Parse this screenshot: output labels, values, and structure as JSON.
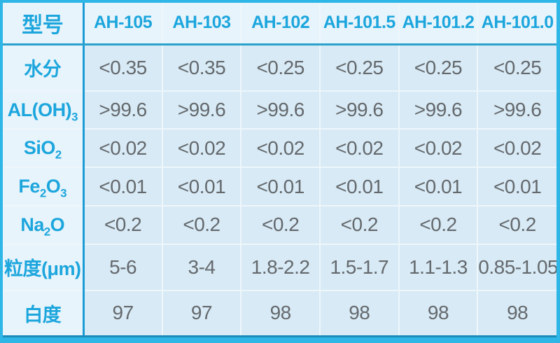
{
  "colors": {
    "frame_cyan": "#2eb6e6",
    "accent_text": "#1ca6dd",
    "value_text": "#64696d",
    "data_cell_bg": "#d8eaf5",
    "label_cell_bg": "#e8f4fb",
    "strong_divider": "#1a9cd6",
    "header_divider": "#2aa2cc",
    "light_grid": "#edf6fb",
    "bottom_edge": "#1a8cba"
  },
  "table": {
    "corner_label": "型号",
    "columns": [
      "AH-105",
      "AH-103",
      "AH-102",
      "AH-101.5",
      "AH-101.2",
      "AH-101.0"
    ],
    "rows": [
      {
        "name": "moisture",
        "label_segments": [
          {
            "text": "水分"
          }
        ],
        "values": [
          "<0.35",
          "<0.35",
          "<0.25",
          "<0.25",
          "<0.25",
          "<0.25"
        ]
      },
      {
        "name": "al-oh-3",
        "label_segments": [
          {
            "text": "AL(OH)"
          },
          {
            "text": "3",
            "sub": true
          }
        ],
        "values": [
          ">99.6",
          ">99.6",
          ">99.6",
          ">99.6",
          ">99.6",
          ">99.6"
        ]
      },
      {
        "name": "sio2",
        "label_segments": [
          {
            "text": "SiO"
          },
          {
            "text": "2",
            "sub": true
          }
        ],
        "values": [
          "<0.02",
          "<0.02",
          "<0.02",
          "<0.02",
          "<0.02",
          "<0.02"
        ]
      },
      {
        "name": "fe2o3",
        "label_segments": [
          {
            "text": "Fe"
          },
          {
            "text": "2",
            "sub": true
          },
          {
            "text": "O"
          },
          {
            "text": "3",
            "sub": true
          }
        ],
        "values": [
          "<0.01",
          "<0.01",
          "<0.01",
          "<0.01",
          "<0.01",
          "<0.01"
        ]
      },
      {
        "name": "na2o",
        "label_segments": [
          {
            "text": "Na"
          },
          {
            "text": "2",
            "sub": true
          },
          {
            "text": "O"
          }
        ],
        "values": [
          "<0.2",
          "<0.2",
          "<0.2",
          "<0.2",
          "<0.2",
          "<0.2"
        ]
      },
      {
        "name": "particle-size",
        "label_segments": [
          {
            "text": "粒度(μm)"
          }
        ],
        "values": [
          "5-6",
          "3-4",
          "1.8-2.2",
          "1.5-1.7",
          "1.1-1.3",
          "0.85-1.05"
        ]
      },
      {
        "name": "whiteness",
        "label_segments": [
          {
            "text": "白度"
          }
        ],
        "values": [
          "97",
          "97",
          "98",
          "98",
          "98",
          "98"
        ]
      }
    ]
  }
}
